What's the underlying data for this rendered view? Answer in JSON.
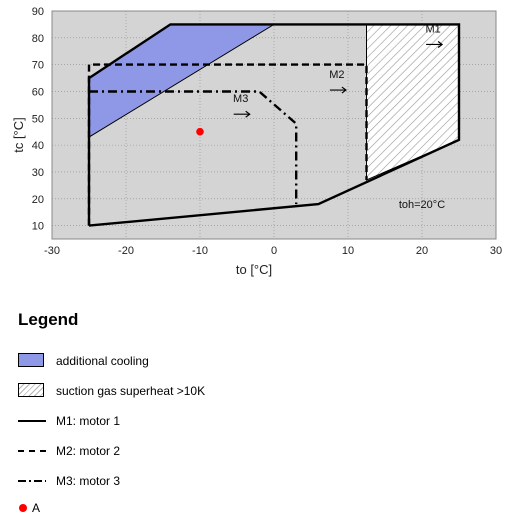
{
  "chart_data": {
    "type": "area",
    "xlabel": "to [°C]",
    "ylabel": "tc [°C]",
    "xlim": [
      -30,
      30
    ],
    "ylim": [
      5,
      90
    ],
    "x_ticks": [
      -30,
      -20,
      -10,
      0,
      10,
      20,
      30
    ],
    "y_ticks": [
      10,
      20,
      30,
      40,
      50,
      60,
      70,
      80,
      90
    ],
    "grid": true,
    "annotation": "toh=20°C",
    "regions": [
      {
        "name": "additional cooling",
        "color": "#8e98e6",
        "points": [
          [
            -25,
            65
          ],
          [
            -14,
            85
          ],
          [
            0,
            85
          ],
          [
            -25,
            43
          ]
        ]
      },
      {
        "name": "suction gas superheat >10K",
        "pattern": "hatch",
        "points": [
          [
            12.5,
            85
          ],
          [
            25,
            85
          ],
          [
            25,
            42
          ],
          [
            12.5,
            27
          ]
        ]
      }
    ],
    "series": [
      {
        "name": "M1",
        "style": "solid",
        "points": [
          [
            -25,
            10
          ],
          [
            -25,
            65
          ],
          [
            -14,
            85
          ],
          [
            25,
            85
          ],
          [
            25,
            42
          ],
          [
            6,
            18
          ],
          [
            -25,
            10
          ]
        ]
      },
      {
        "name": "M2",
        "style": "dashed",
        "points": [
          [
            -25,
            10
          ],
          [
            -25,
            70
          ],
          [
            12.5,
            70
          ],
          [
            12.5,
            27
          ]
        ]
      },
      {
        "name": "M3",
        "style": "dashdot",
        "points": [
          [
            -25,
            60
          ],
          [
            -2,
            60
          ],
          [
            3,
            48
          ],
          [
            3,
            18
          ]
        ]
      }
    ],
    "curve_labels": [
      {
        "text": "M1",
        "x": 21.5,
        "y": 82
      },
      {
        "text": "M2",
        "x": 8.5,
        "y": 65
      },
      {
        "text": "M3",
        "x": -4.5,
        "y": 56
      }
    ],
    "point_a": {
      "name": "A",
      "x": -10,
      "y": 45,
      "color": "#ff0000"
    },
    "colors": {
      "plot_bg": "#d4d4d4",
      "cooling_fill": "#8e98e6",
      "point": "#ff0000"
    }
  },
  "legend": {
    "title": "Legend",
    "items": [
      {
        "label": "additional cooling"
      },
      {
        "label": "suction gas superheat >10K"
      },
      {
        "label": "M1: motor 1"
      },
      {
        "label": "M2: motor 2"
      },
      {
        "label": "M3: motor 3"
      },
      {
        "label": "A"
      }
    ]
  }
}
